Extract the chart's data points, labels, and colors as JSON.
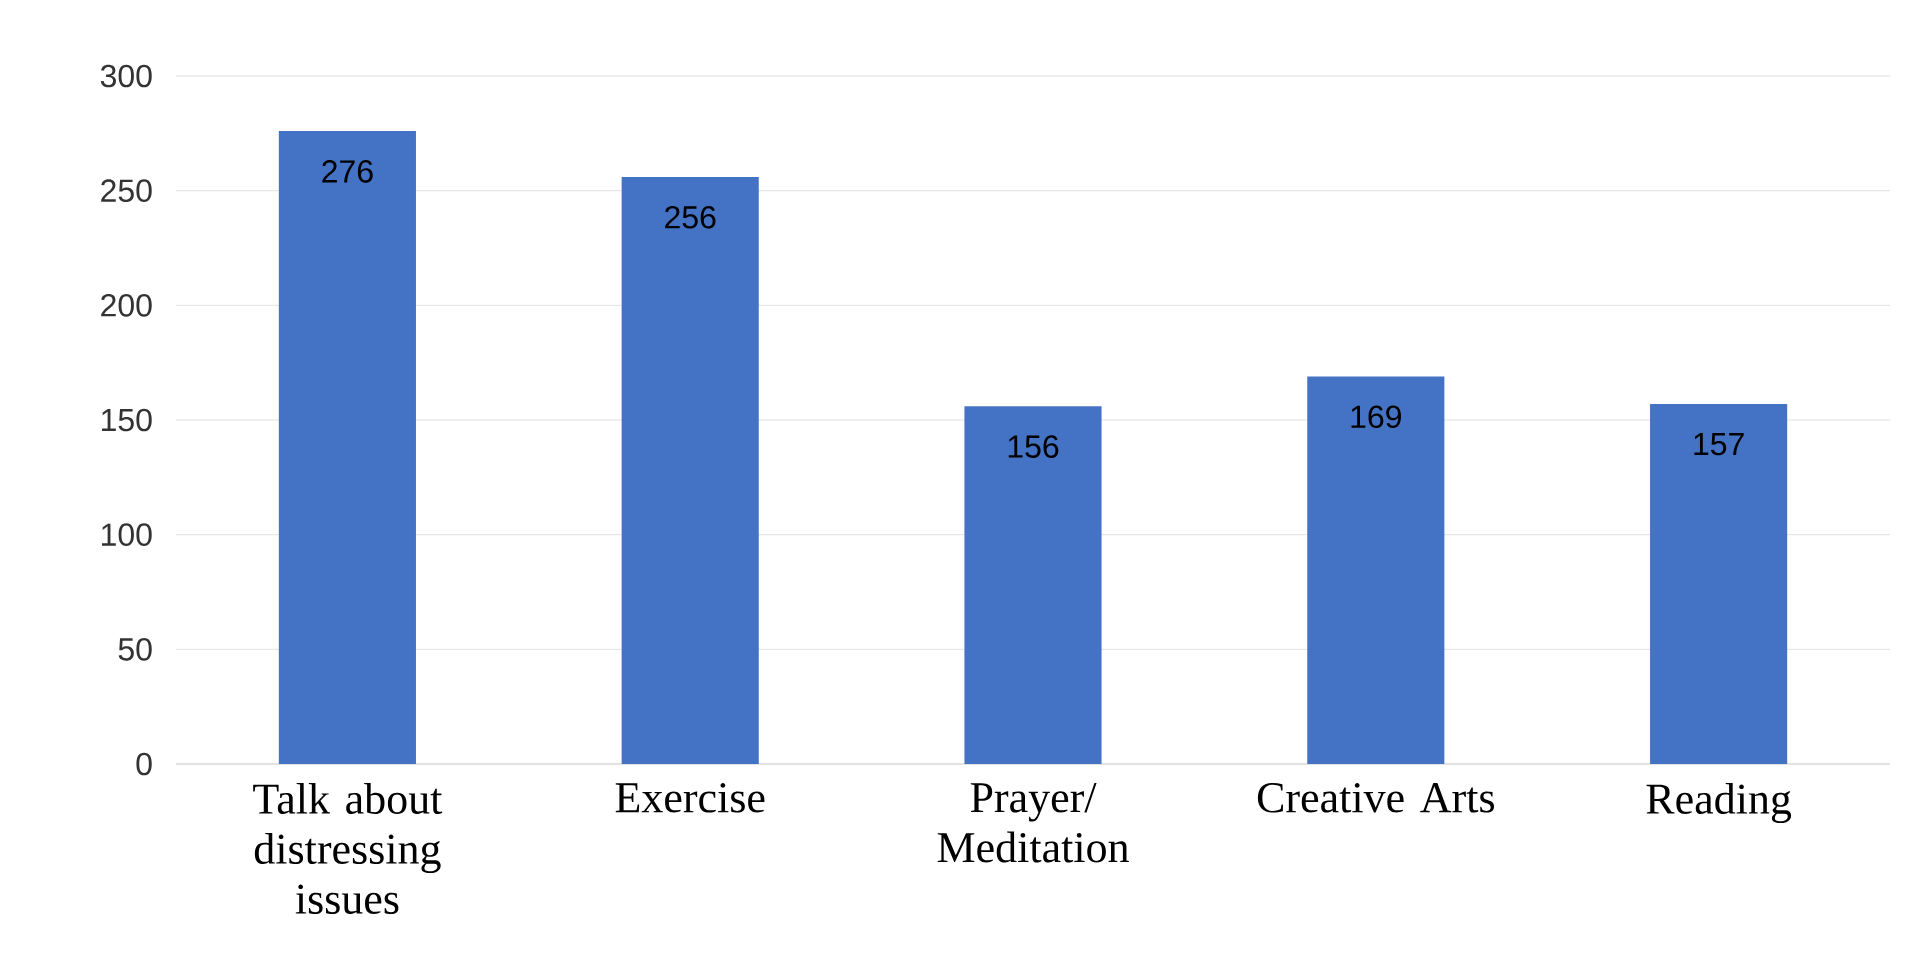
{
  "chart_data": {
    "type": "bar",
    "categories": [
      "Talk about distressing issues",
      "Exercise",
      "Prayer/ Meditation",
      "Creative Arts",
      "Reading"
    ],
    "values": [
      276,
      256,
      156,
      169,
      157
    ],
    "color": "#4472c4",
    "ylim": [
      0,
      300
    ],
    "yticks": [
      0,
      50,
      100,
      150,
      200,
      250,
      300
    ],
    "grid": "y",
    "data_labels": true
  }
}
